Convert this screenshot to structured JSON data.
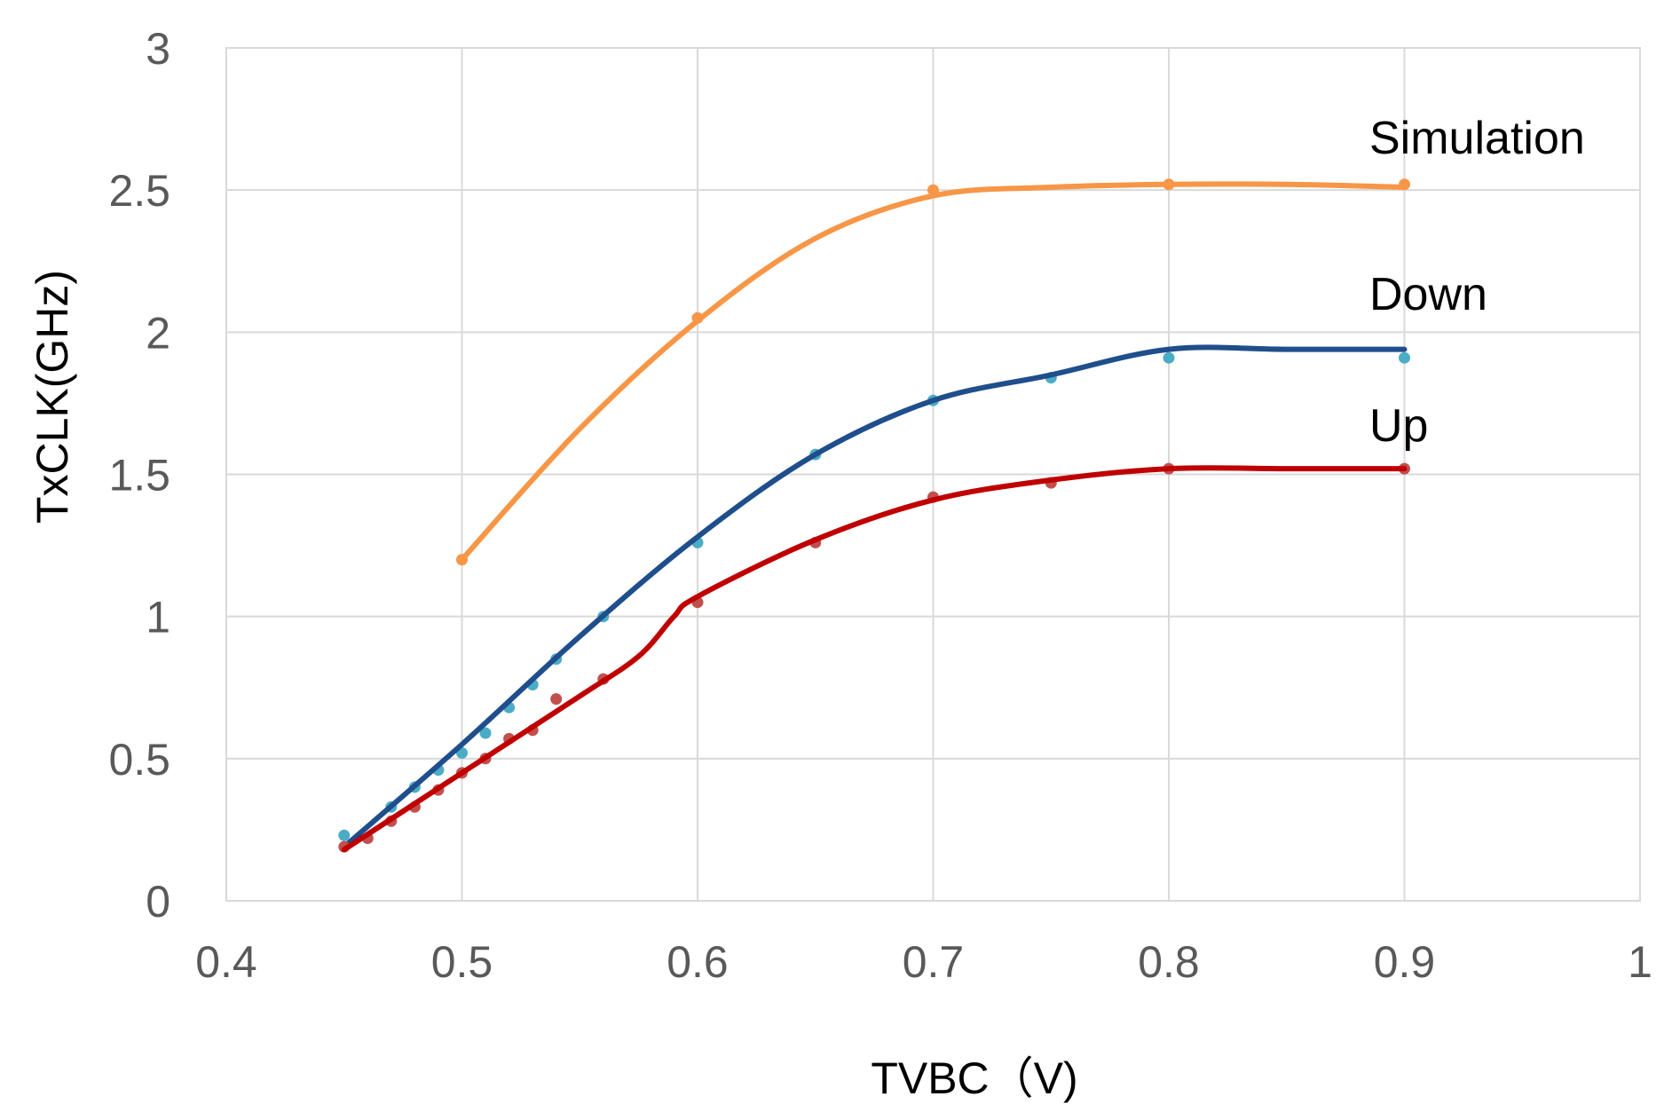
{
  "chart_data": {
    "type": "scatter",
    "xlabel": "TVBC（V)",
    "ylabel": "TxCLK(GHz)",
    "xlim": [
      0.4,
      1.0
    ],
    "ylim": [
      0,
      3
    ],
    "xticks": [
      "0.4",
      "0.5",
      "0.6",
      "0.7",
      "0.8",
      "0.9",
      "1"
    ],
    "yticks": [
      "0",
      "0.5",
      "1",
      "1.5",
      "2",
      "2.5",
      "3"
    ],
    "grid": true,
    "legend": "none",
    "series": [
      {
        "name": "Simulation",
        "color": "#f79646",
        "marker_color": "#f79646",
        "x": [
          0.5,
          0.6,
          0.7,
          0.8,
          0.9
        ],
        "y": [
          1.2,
          2.05,
          2.5,
          2.52,
          2.52
        ],
        "curve": [
          [
            0.5,
            1.2
          ],
          [
            0.55,
            1.66
          ],
          [
            0.6,
            2.04
          ],
          [
            0.65,
            2.33
          ],
          [
            0.7,
            2.48
          ],
          [
            0.75,
            2.51
          ],
          [
            0.8,
            2.52
          ],
          [
            0.85,
            2.52
          ],
          [
            0.9,
            2.51
          ]
        ]
      },
      {
        "name": "Down",
        "color": "#1f4e8c",
        "marker_color": "#4bacc6",
        "x": [
          0.45,
          0.47,
          0.48,
          0.49,
          0.5,
          0.51,
          0.52,
          0.53,
          0.54,
          0.56,
          0.6,
          0.65,
          0.7,
          0.75,
          0.8,
          0.9
        ],
        "y": [
          0.23,
          0.33,
          0.4,
          0.46,
          0.52,
          0.59,
          0.68,
          0.76,
          0.85,
          1.0,
          1.26,
          1.57,
          1.76,
          1.84,
          1.91,
          1.91
        ],
        "curve": [
          [
            0.45,
            0.19
          ],
          [
            0.5,
            0.55
          ],
          [
            0.55,
            0.93
          ],
          [
            0.6,
            1.28
          ],
          [
            0.65,
            1.57
          ],
          [
            0.7,
            1.76
          ],
          [
            0.75,
            1.85
          ],
          [
            0.8,
            1.94
          ],
          [
            0.85,
            1.94
          ],
          [
            0.9,
            1.94
          ]
        ]
      },
      {
        "name": "Up",
        "color": "#c00000",
        "marker_color": "#c0504d",
        "x": [
          0.45,
          0.46,
          0.47,
          0.48,
          0.49,
          0.5,
          0.51,
          0.52,
          0.53,
          0.54,
          0.56,
          0.6,
          0.65,
          0.7,
          0.75,
          0.8,
          0.9
        ],
        "y": [
          0.19,
          0.22,
          0.28,
          0.33,
          0.39,
          0.45,
          0.5,
          0.57,
          0.6,
          0.71,
          0.78,
          1.05,
          1.26,
          1.42,
          1.47,
          1.52,
          1.52
        ],
        "curve": [
          [
            0.45,
            0.18
          ],
          [
            0.5,
            0.45
          ],
          [
            0.55,
            0.72
          ],
          [
            0.575,
            0.86
          ],
          [
            0.59,
            1.0
          ],
          [
            0.6,
            1.07
          ],
          [
            0.65,
            1.27
          ],
          [
            0.7,
            1.41
          ],
          [
            0.75,
            1.48
          ],
          [
            0.8,
            1.52
          ],
          [
            0.85,
            1.52
          ],
          [
            0.9,
            1.52
          ]
        ]
      }
    ],
    "annotations": [
      {
        "text": "Simulation",
        "series": "Simulation"
      },
      {
        "text": "Down",
        "series": "Down"
      },
      {
        "text": "Up",
        "series": "Up"
      }
    ]
  }
}
